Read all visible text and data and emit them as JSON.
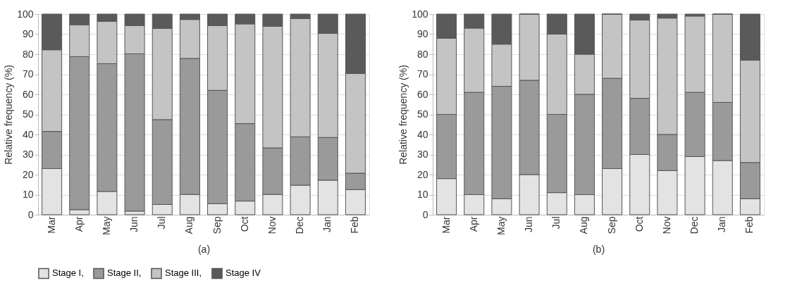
{
  "chart_data": [
    {
      "type": "bar",
      "stacked": true,
      "xlabel": "(a)",
      "ylabel": "Relative frequency (%)",
      "categories": [
        "Mar",
        "Apr",
        "May",
        "Jun",
        "Jul",
        "Aug",
        "Sep",
        "Oct",
        "Nov",
        "Dec",
        "Jan",
        "Feb"
      ],
      "series": [
        {
          "name": "Stage I,",
          "color": "#e3e3e3",
          "values": [
            23,
            2.5,
            11.6,
            1.8,
            5.1,
            10.1,
            5.5,
            6.8,
            10.1,
            14.7,
            17.2,
            12.5
          ]
        },
        {
          "name": "Stage II,",
          "color": "#9a9a9a",
          "values": [
            18.5,
            76.3,
            63.7,
            78.4,
            42.3,
            67.8,
            56.5,
            38.6,
            23.2,
            24.1,
            21.3,
            8.2
          ]
        },
        {
          "name": "Stage III,",
          "color": "#c4c4c4",
          "values": [
            40.7,
            15.9,
            21.1,
            14.1,
            45.5,
            19.4,
            32.3,
            49.7,
            60.6,
            59,
            51.9,
            49.7
          ]
        },
        {
          "name": "Stage IV",
          "color": "#5a5a5a",
          "values": [
            17.8,
            5.3,
            3.6,
            5.7,
            7.1,
            2.7,
            5.7,
            4.9,
            6.1,
            2.2,
            9.6,
            29.6
          ]
        }
      ],
      "ylim": [
        0,
        100
      ],
      "yticks": [
        0,
        10,
        20,
        30,
        40,
        50,
        60,
        70,
        80,
        90,
        100
      ],
      "grid": "y",
      "legend": "bottom"
    },
    {
      "type": "bar",
      "stacked": true,
      "xlabel": "(b)",
      "ylabel": "Relative frequency (%)",
      "categories": [
        "Mar",
        "Apr",
        "May",
        "Jun",
        "Jul",
        "Aug",
        "Sep",
        "Oct",
        "Nov",
        "Dec",
        "Jan",
        "Feb"
      ],
      "series": [
        {
          "name": "Stage I,",
          "color": "#e3e3e3",
          "values": [
            18,
            10,
            8,
            20,
            11,
            10,
            23,
            30,
            22,
            29,
            27,
            8
          ]
        },
        {
          "name": "Stage II,",
          "color": "#9a9a9a",
          "values": [
            32,
            51,
            56,
            47,
            39,
            50,
            45,
            28,
            18,
            32,
            29,
            18
          ]
        },
        {
          "name": "Stage III,",
          "color": "#c4c4c4",
          "values": [
            38,
            32,
            21,
            33,
            40,
            20,
            32,
            39,
            58,
            38,
            44,
            51
          ]
        },
        {
          "name": "Stage IV",
          "color": "#5a5a5a",
          "values": [
            12,
            7,
            15,
            0,
            10,
            20,
            0,
            3,
            2,
            1,
            0,
            23
          ]
        }
      ],
      "ylim": [
        0,
        100
      ],
      "yticks": [
        0,
        10,
        20,
        30,
        40,
        50,
        60,
        70,
        80,
        90,
        100
      ],
      "grid": "y",
      "legend": "bottom"
    }
  ]
}
